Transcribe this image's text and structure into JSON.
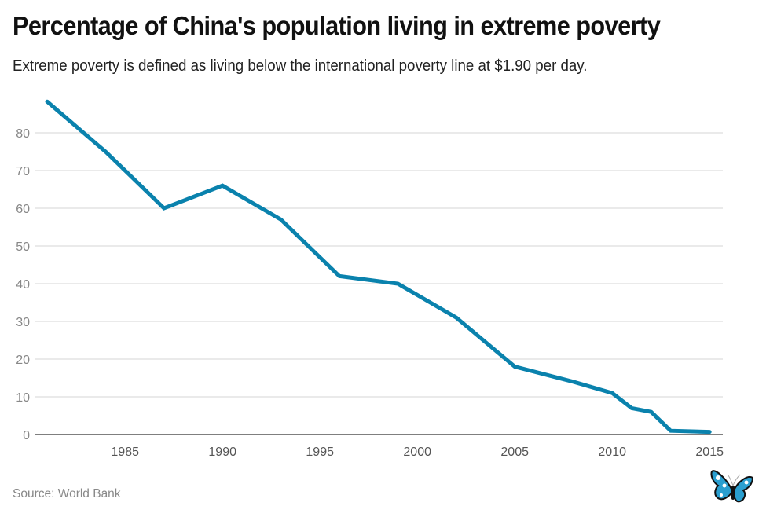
{
  "header": {
    "title": "Percentage of China's population living in extreme poverty",
    "subtitle": "Extreme poverty is defined as living below the international poverty line at $1.90 per day."
  },
  "footer": {
    "source": "Source: World Bank",
    "logo_icon": "butterfly-logo-icon"
  },
  "colors": {
    "line": "#0a82ad",
    "grid": "#dddddd",
    "axis": "#555555",
    "logo_blue": "#2a9fd0"
  },
  "chart_data": {
    "type": "line",
    "title": "Percentage of China's population living in extreme poverty",
    "subtitle": "Extreme poverty is defined as living below the international poverty line at $1.90 per day.",
    "xlabel": "",
    "ylabel": "",
    "x": [
      1981,
      1984,
      1987,
      1990,
      1993,
      1996,
      1999,
      2002,
      2005,
      2008,
      2010,
      2011,
      2012,
      2013,
      2015
    ],
    "series": [
      {
        "name": "Extreme poverty (%)",
        "values": [
          88.3,
          75.0,
          60.0,
          66.0,
          57.0,
          42.0,
          40.0,
          31.0,
          18.0,
          14.0,
          11.0,
          7.0,
          6.0,
          1.0,
          0.7
        ]
      }
    ],
    "xlim": [
      1980.2,
      2015.6
    ],
    "ylim": [
      0,
      90
    ],
    "x_ticks": [
      1985,
      1990,
      1995,
      2000,
      2005,
      2010,
      2015
    ],
    "y_ticks": [
      0,
      10,
      20,
      30,
      40,
      50,
      60,
      70,
      80
    ],
    "grid": true,
    "legend": "none",
    "source": "Source: World Bank"
  }
}
